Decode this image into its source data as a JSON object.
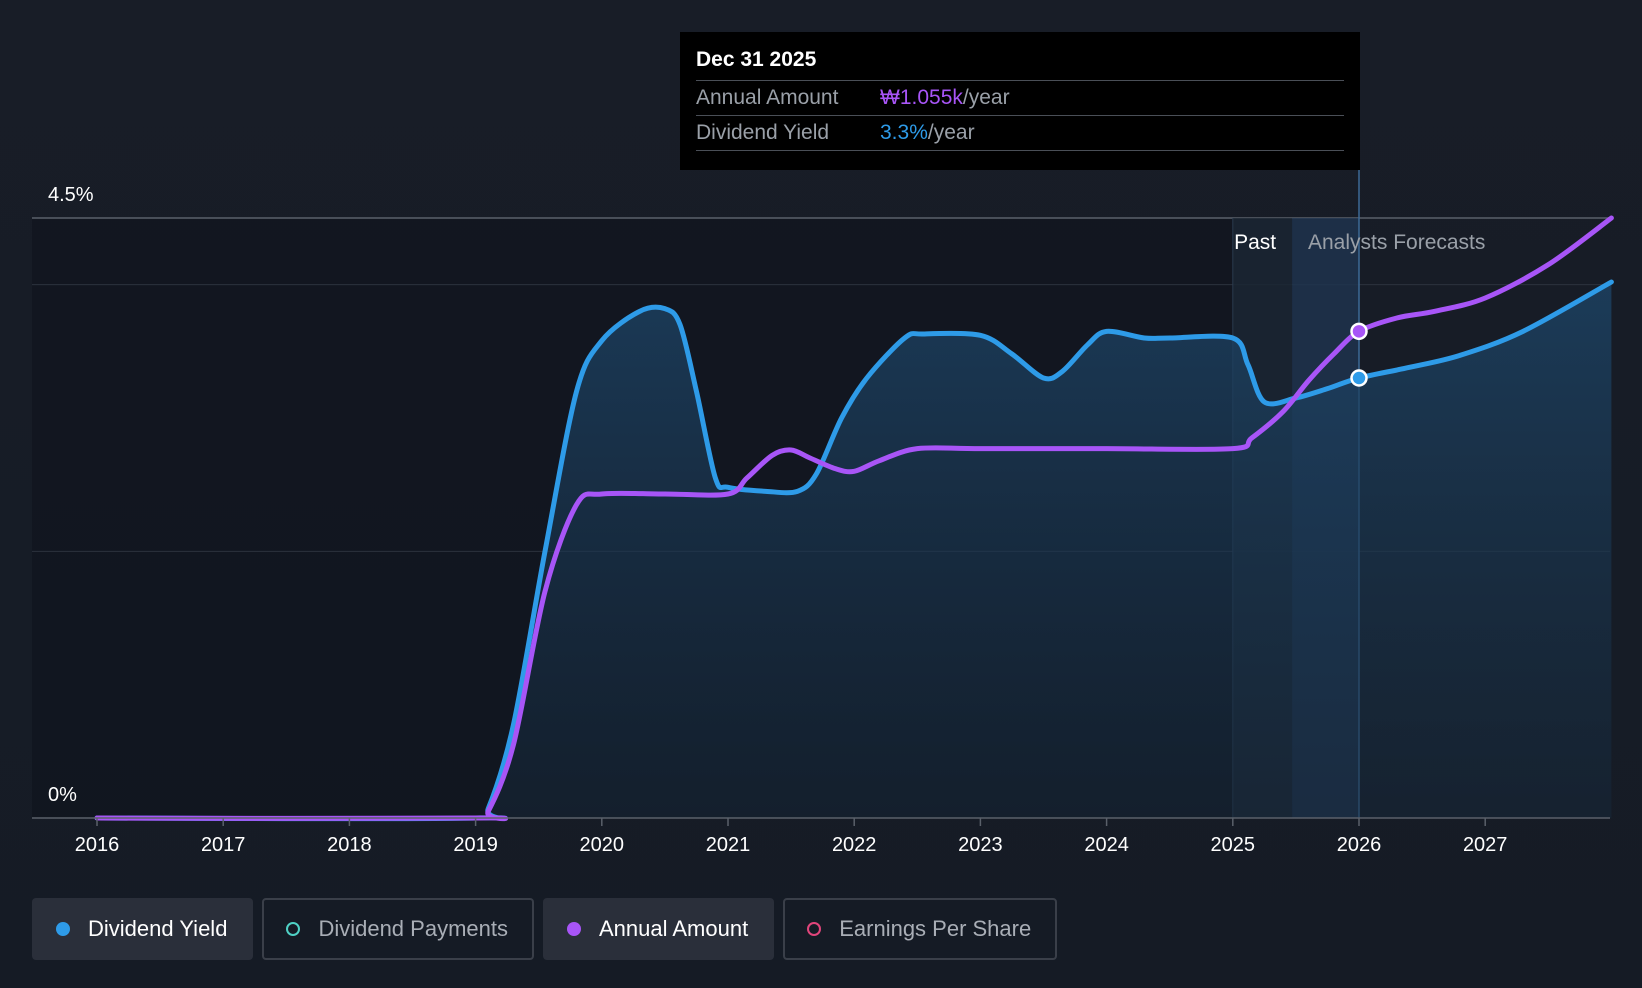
{
  "tooltip": {
    "date": "Dec 31 2025",
    "rows": [
      {
        "label": "Annual Amount",
        "value": "₩1.055k",
        "unit": "/year",
        "color": "#a855f7"
      },
      {
        "label": "Dividend Yield",
        "value": "3.3%",
        "unit": "/year",
        "color": "#2e9be8"
      }
    ]
  },
  "legend": [
    {
      "label": "Dividend Yield",
      "color": "#2e9be8",
      "active": true,
      "filled": true
    },
    {
      "label": "Dividend Payments",
      "color": "#4fd1c5",
      "active": false,
      "filled": false
    },
    {
      "label": "Annual Amount",
      "color": "#a855f7",
      "active": true,
      "filled": true
    },
    {
      "label": "Earnings Per Share",
      "color": "#e0457b",
      "active": false,
      "filled": false
    }
  ],
  "chart_data": {
    "type": "line",
    "y_axis_labels": [
      "4.5%",
      "0%"
    ],
    "ylim": [
      0,
      4.5
    ],
    "xlim": [
      2015.5,
      2028.0
    ],
    "x_ticks": [
      "2016",
      "2017",
      "2018",
      "2019",
      "2020",
      "2021",
      "2022",
      "2023",
      "2024",
      "2025",
      "2026",
      "2027"
    ],
    "regions": {
      "past_label": "Past",
      "forecast_label": "Analysts Forecasts",
      "past_end": 2025.0,
      "forecast_start": 2025.47,
      "cursor": 2026.0
    },
    "grid_lines": [
      4.5,
      4.0,
      2.0
    ],
    "series": [
      {
        "name": "Dividend Yield",
        "color": "#2e9be8",
        "fill": true,
        "points": [
          [
            2016.0,
            0.0
          ],
          [
            2019.0,
            0.0
          ],
          [
            2019.1,
            0.07
          ],
          [
            2019.3,
            0.7
          ],
          [
            2019.55,
            2.0
          ],
          [
            2019.8,
            3.2
          ],
          [
            2020.0,
            3.58
          ],
          [
            2020.3,
            3.8
          ],
          [
            2020.5,
            3.82
          ],
          [
            2020.62,
            3.7
          ],
          [
            2020.75,
            3.2
          ],
          [
            2020.9,
            2.55
          ],
          [
            2021.0,
            2.48
          ],
          [
            2021.3,
            2.45
          ],
          [
            2021.55,
            2.45
          ],
          [
            2021.7,
            2.58
          ],
          [
            2021.9,
            3.0
          ],
          [
            2022.1,
            3.3
          ],
          [
            2022.4,
            3.6
          ],
          [
            2022.55,
            3.63
          ],
          [
            2023.0,
            3.62
          ],
          [
            2023.25,
            3.48
          ],
          [
            2023.5,
            3.3
          ],
          [
            2023.65,
            3.35
          ],
          [
            2023.85,
            3.55
          ],
          [
            2024.0,
            3.65
          ],
          [
            2024.3,
            3.6
          ],
          [
            2024.5,
            3.6
          ],
          [
            2025.0,
            3.6
          ],
          [
            2025.12,
            3.4
          ],
          [
            2025.25,
            3.12
          ],
          [
            2025.5,
            3.15
          ],
          [
            2025.75,
            3.22
          ],
          [
            2026.0,
            3.3
          ],
          [
            2026.4,
            3.38
          ],
          [
            2026.8,
            3.47
          ],
          [
            2027.3,
            3.65
          ],
          [
            2028.0,
            4.02
          ]
        ]
      },
      {
        "name": "Annual Amount",
        "color": "#a855f7",
        "fill": false,
        "points": [
          [
            2016.0,
            0.0
          ],
          [
            2019.0,
            0.0
          ],
          [
            2019.1,
            0.05
          ],
          [
            2019.3,
            0.55
          ],
          [
            2019.55,
            1.7
          ],
          [
            2019.8,
            2.35
          ],
          [
            2020.0,
            2.43
          ],
          [
            2020.5,
            2.43
          ],
          [
            2021.0,
            2.43
          ],
          [
            2021.15,
            2.55
          ],
          [
            2021.35,
            2.72
          ],
          [
            2021.5,
            2.76
          ],
          [
            2021.65,
            2.7
          ],
          [
            2021.85,
            2.62
          ],
          [
            2022.0,
            2.6
          ],
          [
            2022.2,
            2.68
          ],
          [
            2022.5,
            2.77
          ],
          [
            2023.0,
            2.77
          ],
          [
            2024.0,
            2.77
          ],
          [
            2025.0,
            2.77
          ],
          [
            2025.15,
            2.85
          ],
          [
            2025.4,
            3.05
          ],
          [
            2025.6,
            3.28
          ],
          [
            2025.8,
            3.48
          ],
          [
            2026.0,
            3.65
          ],
          [
            2026.3,
            3.75
          ],
          [
            2026.6,
            3.8
          ],
          [
            2027.0,
            3.9
          ],
          [
            2027.5,
            4.15
          ],
          [
            2028.0,
            4.5
          ]
        ]
      }
    ]
  }
}
